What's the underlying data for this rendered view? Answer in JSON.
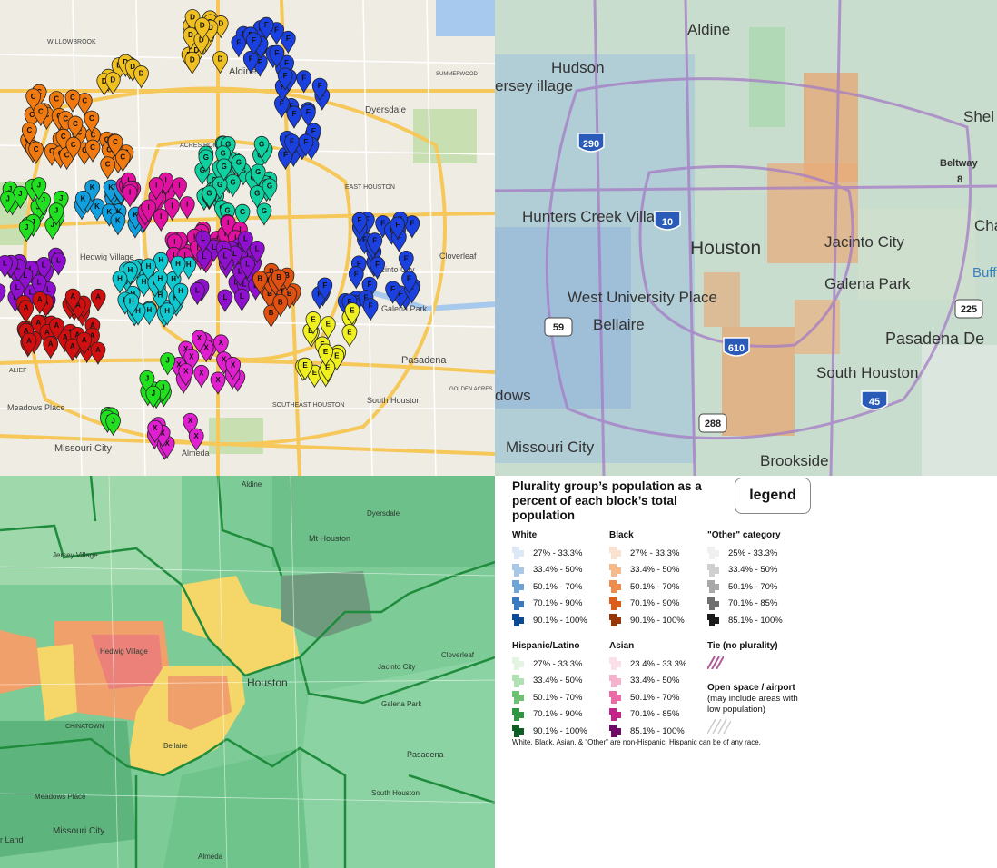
{
  "map1": {
    "labels": [
      {
        "text": "Aldine"
      },
      {
        "text": "Dyersdale"
      },
      {
        "text": "WILLOWBROOK"
      },
      {
        "text": "ACRES HOMES"
      },
      {
        "text": "Hedwig Village"
      },
      {
        "text": "Jacinto City"
      },
      {
        "text": "Galena Park"
      },
      {
        "text": "Cloverleaf"
      },
      {
        "text": "Pasadena"
      },
      {
        "text": "South Houston"
      },
      {
        "text": "Meadows Place"
      },
      {
        "text": "Missouri City"
      },
      {
        "text": "Almeda"
      },
      {
        "text": "ALIEF"
      },
      {
        "text": "SOUTHEAST HOUSTON"
      },
      {
        "text": "EAST HOUSTON"
      },
      {
        "text": "GOLDEN ACRES"
      },
      {
        "text": "SUMMERWOOD"
      }
    ],
    "pin_letters": [
      "A",
      "B",
      "C",
      "D",
      "E",
      "F",
      "G",
      "H",
      "I",
      "J",
      "K",
      "L",
      "X"
    ],
    "pin_colors": {
      "A": "#d01010",
      "B": "#e05010",
      "C": "#f07a10",
      "D": "#f0c020",
      "E": "#f0f020",
      "F": "#1a40e0",
      "G": "#10d0a0",
      "H": "#10c8d0",
      "I": "#e010a0",
      "J": "#20e020",
      "K": "#10a0e0",
      "L": "#9010d0",
      "X": "#e020d0"
    }
  },
  "map2": {
    "labels": [
      {
        "text": "Aldine"
      },
      {
        "text": "Hudson"
      },
      {
        "text": "ersey illage"
      },
      {
        "text": "Shel"
      },
      {
        "text": "Beltway"
      },
      {
        "text": "8"
      },
      {
        "text": "Hunters Creek Village"
      },
      {
        "text": "Houston"
      },
      {
        "text": "Jacinto City"
      },
      {
        "text": "Cha"
      },
      {
        "text": "Galena Park"
      },
      {
        "text": "Buff Bay"
      },
      {
        "text": "West University Place"
      },
      {
        "text": "Bellaire"
      },
      {
        "text": "Pasadena De"
      },
      {
        "text": "South Houston"
      },
      {
        "text": "dows"
      },
      {
        "text": "Missouri City"
      },
      {
        "text": "Brookside"
      }
    ],
    "shields": [
      "290",
      "10",
      "59",
      "610",
      "225",
      "45",
      "288"
    ]
  },
  "map3": {
    "labels": [
      {
        "text": "Aldine"
      },
      {
        "text": "Dyersdale"
      },
      {
        "text": "Jersey Village"
      },
      {
        "text": "Mt Houston"
      },
      {
        "text": "Hedwig Village"
      },
      {
        "text": "Houston"
      },
      {
        "text": "Jacinto City"
      },
      {
        "text": "Cloverleaf"
      },
      {
        "text": "Galena Park"
      },
      {
        "text": "Bellaire"
      },
      {
        "text": "Pasadena"
      },
      {
        "text": "South Houston"
      },
      {
        "text": "Meadows Place"
      },
      {
        "text": "Missouri City"
      },
      {
        "text": "Almeda"
      },
      {
        "text": "CHINATOWN"
      },
      {
        "text": "r Land"
      }
    ]
  },
  "legend": {
    "title": "Plurality group’s population as a percent of each block’s total population",
    "button_label": "legend",
    "groups": [
      {
        "name": "White",
        "rows": [
          "27% - 33.3%",
          "33.4% - 50%",
          "50.1% - 70%",
          "70.1% - 90%",
          "90.1% - 100%"
        ],
        "colors": [
          "#dde8f6",
          "#a9c8e6",
          "#6fa4d6",
          "#3a78bf",
          "#0d4a96"
        ]
      },
      {
        "name": "Black",
        "rows": [
          "27% - 33.3%",
          "33.4% - 50%",
          "50.1% - 70%",
          "70.1% - 90%",
          "90.1% - 100%"
        ],
        "colors": [
          "#fbe1cf",
          "#f6b98a",
          "#f08c4b",
          "#dd5e18",
          "#9a3506"
        ]
      },
      {
        "name": "\"Other\" category",
        "rows": [
          "25% - 33.3%",
          "33.4% - 50%",
          "50.1% - 70%",
          "70.1% - 85%",
          "85.1% - 100%"
        ],
        "colors": [
          "#f0f0f0",
          "#cfcfcf",
          "#a8a8a8",
          "#6f6f6f",
          "#1a1a1a"
        ]
      },
      {
        "name": "Hispanic/Latino",
        "rows": [
          "27% - 33.3%",
          "33.4% - 50%",
          "50.1% - 70%",
          "70.1% - 90%",
          "90.1% - 100%"
        ],
        "colors": [
          "#e3f4e3",
          "#b1e1b3",
          "#6cc173",
          "#2e9640",
          "#0d5e22"
        ]
      },
      {
        "name": "Asian",
        "rows": [
          "23.4% - 33.3%",
          "33.4% - 50%",
          "50.1% - 70%",
          "70.1% - 85%",
          "85.1% - 100%"
        ],
        "colors": [
          "#fbe0ea",
          "#f6b1cc",
          "#ec6aa6",
          "#c2248a",
          "#6f0a66"
        ]
      }
    ],
    "tie_label": "Tie (no plurality)",
    "open_space_label": "Open space / airport",
    "open_space_note": "(may include areas with low population)",
    "footnote": "White, Black, Asian, & “Other” are non-Hispanic. Hispanic can be of any race."
  }
}
